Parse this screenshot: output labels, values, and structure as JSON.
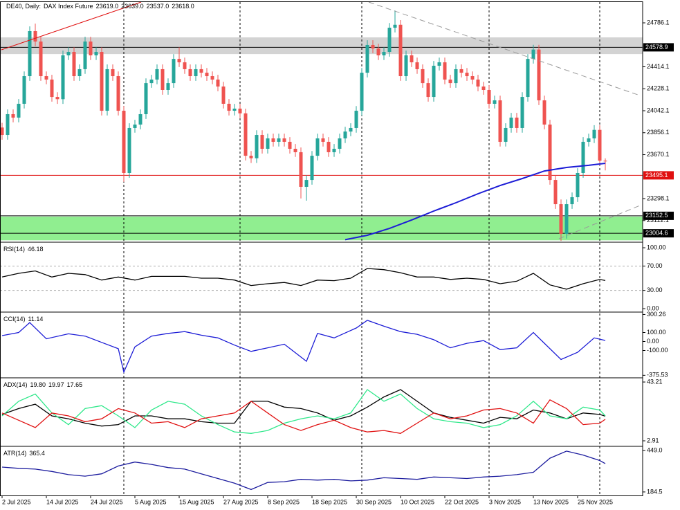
{
  "chart_data": [
    {
      "type": "candlestick",
      "title": "DE40, Daily:",
      "subtitle": "DAX Index Future",
      "header_values": [
        "23619.0",
        "23639.0",
        "23537.0",
        "23618.0"
      ],
      "xlim": [
        -0.375,
        115.75
      ],
      "ylim": [
        22935,
        24962
      ],
      "yticks": [
        24786.1,
        24414.1,
        24228.1,
        24042.1,
        23856.1,
        23670.1,
        23298.1,
        23112.1
      ],
      "up_color": "#26a69a",
      "down_color": "#ef5350",
      "open": [
        23900,
        23837,
        24013,
        23984,
        24101,
        24335,
        24716,
        24628,
        24335,
        24306,
        24159,
        24140,
        24511,
        24540,
        24335,
        24394,
        24628,
        24511,
        24540,
        24042,
        24394,
        24335,
        24042,
        23515,
        23896,
        23925,
        24013,
        24276,
        24306,
        24394,
        24218,
        24276,
        24481,
        24452,
        24394,
        24335,
        24394,
        24364,
        24335,
        24306,
        24247,
        24101,
        24042,
        24060,
        24020,
        23661,
        23640,
        23837,
        23720,
        23808,
        23779,
        23808,
        23779,
        23720,
        23691,
        23398,
        23456,
        23661,
        23808,
        23779,
        23691,
        23720,
        23808,
        23866,
        23896,
        24042,
        24364,
        24599,
        24569,
        24511,
        24540,
        24745,
        24770,
        24335,
        24511,
        24452,
        24394,
        24276,
        24159,
        24423,
        24452,
        24306,
        24276,
        24394,
        24364,
        24335,
        24306,
        24247,
        24218,
        24101,
        24130,
        23779,
        23896,
        23984,
        23896,
        24159,
        24481,
        24560,
        24130,
        23925,
        23456,
        23251,
        23000,
        23251,
        23310,
        23515,
        23779,
        23808,
        23880,
        23619
      ],
      "high": [
        23940,
        24053,
        24053,
        24141,
        24375,
        24756,
        24780,
        24668,
        24375,
        24346,
        24199,
        24551,
        24580,
        24580,
        24434,
        24668,
        24668,
        24580,
        24580,
        24434,
        24434,
        24375,
        24082,
        23936,
        23965,
        24053,
        24316,
        24346,
        24434,
        24434,
        24316,
        24521,
        24580,
        24492,
        24434,
        24434,
        24434,
        24404,
        24375,
        24346,
        24287,
        24141,
        24100,
        24100,
        24060,
        23701,
        23877,
        23877,
        23848,
        23848,
        23848,
        23848,
        23819,
        23760,
        23731,
        23496,
        23701,
        23848,
        23848,
        23819,
        23760,
        23848,
        23906,
        23936,
        24082,
        24404,
        24639,
        24639,
        24609,
        24580,
        24785,
        24890,
        24810,
        24551,
        24551,
        24492,
        24434,
        24316,
        24463,
        24492,
        24492,
        24346,
        24434,
        24434,
        24404,
        24375,
        24346,
        24287,
        24258,
        24170,
        24170,
        23936,
        24024,
        24024,
        24199,
        24521,
        24600,
        24600,
        24170,
        23965,
        23496,
        23291,
        23291,
        23350,
        23555,
        23819,
        23848,
        23920,
        23920,
        23639
      ],
      "low": [
        23797,
        23797,
        23944,
        23944,
        24061,
        24295,
        24588,
        24295,
        24266,
        24119,
        24100,
        24100,
        24471,
        24295,
        24295,
        24354,
        24471,
        24471,
        24002,
        24002,
        24295,
        24002,
        23440,
        23475,
        23856,
        23885,
        23973,
        24236,
        24266,
        24178,
        24178,
        24236,
        24412,
        24354,
        24295,
        24295,
        24324,
        24295,
        24266,
        24207,
        24061,
        24002,
        24002,
        23980,
        23621,
        23600,
        23600,
        23680,
        23680,
        23739,
        23739,
        23739,
        23680,
        23651,
        23300,
        23281,
        23416,
        23621,
        23739,
        23651,
        23651,
        23680,
        23768,
        23826,
        23856,
        24002,
        24324,
        24529,
        24471,
        24471,
        24500,
        24705,
        24295,
        24295,
        24412,
        24354,
        24236,
        24119,
        24119,
        24383,
        24266,
        24236,
        24236,
        24324,
        24295,
        24266,
        24207,
        24178,
        24061,
        24061,
        23739,
        23739,
        23856,
        23856,
        23856,
        24119,
        24441,
        24090,
        23885,
        23416,
        23211,
        22940,
        22960,
        23211,
        23270,
        23475,
        23739,
        23768,
        23579,
        23537
      ],
      "close": [
        23837,
        24013,
        23984,
        24101,
        24335,
        24716,
        24628,
        24335,
        24306,
        24159,
        24140,
        24511,
        24540,
        24335,
        24394,
        24628,
        24511,
        24540,
        24042,
        24394,
        24335,
        24042,
        23515,
        23896,
        23925,
        24013,
        24276,
        24306,
        24394,
        24218,
        24276,
        24481,
        24452,
        24394,
        24335,
        24394,
        24364,
        24335,
        24306,
        24247,
        24101,
        24042,
        24060,
        24020,
        23661,
        23640,
        23837,
        23720,
        23808,
        23779,
        23808,
        23779,
        23720,
        23691,
        23398,
        23456,
        23661,
        23808,
        23779,
        23691,
        23720,
        23808,
        23866,
        23896,
        24042,
        24364,
        24599,
        24569,
        24511,
        24540,
        24745,
        24770,
        24335,
        24511,
        24452,
        24394,
        24276,
        24159,
        24423,
        24452,
        24306,
        24276,
        24394,
        24364,
        24335,
        24306,
        24247,
        24218,
        24101,
        24130,
        23779,
        23896,
        23984,
        23896,
        24159,
        24481,
        24560,
        24130,
        23925,
        23456,
        23251,
        23000,
        23251,
        23310,
        23515,
        23779,
        23808,
        23880,
        23619,
        23618
      ],
      "ma": {
        "color": "#1c1cd6",
        "x": [
          62,
          66,
          70,
          74,
          78,
          82,
          86,
          90,
          94,
          98,
          102,
          106,
          109
        ],
        "values": [
          22950,
          22988,
          23046,
          23117,
          23193,
          23263,
          23339,
          23409,
          23468,
          23532,
          23562,
          23580,
          23597
        ]
      },
      "zones": [
        {
          "range": [
            24522,
            24663
          ],
          "color": "#d3d3d3"
        },
        {
          "range": [
            22945,
            23146
          ],
          "color": "#90ee90"
        }
      ],
      "levels": [
        {
          "value": 24578.9,
          "color": "#000000"
        },
        {
          "value": 23495.1,
          "color": "#e01010"
        },
        {
          "value": 23152.5,
          "color": "#000000"
        },
        {
          "value": 23004.6,
          "color": "#000000"
        }
      ],
      "separators": [
        22,
        43,
        65,
        88,
        108
      ]
    },
    {
      "type": "line",
      "title": "RSI(14)",
      "ylim": [
        -4.5,
        108
      ],
      "yticks": [
        {
          "value": 100,
          "label": "100.00"
        },
        {
          "value": 70,
          "label": "70.00"
        },
        {
          "value": 30,
          "label": "30.00"
        },
        {
          "value": 0,
          "label": "0.00"
        }
      ],
      "levels": [
        70,
        30
      ],
      "x": [
        0,
        3,
        6,
        9,
        12,
        15,
        18,
        21,
        24,
        27,
        30,
        33,
        36,
        39,
        42,
        45,
        48,
        51,
        54,
        57,
        60,
        63,
        66,
        69,
        72,
        75,
        78,
        81,
        84,
        87,
        90,
        93,
        96,
        99,
        102,
        105,
        108,
        109
      ],
      "series": [
        {
          "name": "RSI",
          "color": "#000000",
          "values": [
            52,
            58,
            62,
            52,
            58,
            56,
            47,
            52,
            47,
            53,
            53,
            53,
            50,
            50,
            47,
            38,
            41,
            43,
            38,
            47,
            46,
            50,
            66,
            64,
            59,
            52,
            52,
            48,
            50,
            48,
            41,
            45,
            58,
            39,
            32,
            41,
            48,
            46.18
          ]
        }
      ]
    },
    {
      "type": "line",
      "title": "CCI(14)",
      "ylim": [
        -396,
        319
      ],
      "yticks": [
        300.26,
        {
          "value": 100,
          "label": "100.00"
        },
        {
          "value": 0,
          "label": "0.00"
        },
        {
          "value": -100,
          "label": "-100.00"
        },
        -375.53
      ],
      "x": [
        0,
        3,
        5,
        8,
        12,
        15,
        18,
        21,
        22,
        24,
        27,
        30,
        33,
        36,
        39,
        42,
        45,
        48,
        51,
        55,
        57,
        60,
        64,
        66,
        69,
        72,
        75,
        78,
        81,
        84,
        87,
        90,
        93,
        96,
        98,
        101,
        104,
        107,
        109
      ],
      "series": [
        {
          "name": "CCI",
          "color": "#1c1cd6",
          "values": [
            65,
            100,
            210,
            30,
            85,
            60,
            -10,
            -80,
            -340,
            -60,
            60,
            90,
            110,
            70,
            40,
            -40,
            -110,
            -70,
            -30,
            -220,
            90,
            40,
            150,
            235,
            170,
            110,
            80,
            20,
            -70,
            -20,
            10,
            -90,
            -70,
            100,
            -20,
            -200,
            -120,
            40,
            11.14
          ]
        }
      ]
    },
    {
      "type": "line",
      "title": "ADX(14)",
      "header_values": [
        "19.80",
        "19.97",
        "17.65"
      ],
      "ylim": [
        -0.4,
        45.6
      ],
      "yticks": [
        43.21,
        2.91
      ],
      "x": [
        0,
        3,
        6,
        9,
        12,
        15,
        18,
        21,
        24,
        27,
        30,
        33,
        36,
        39,
        42,
        45,
        48,
        51,
        54,
        57,
        60,
        63,
        66,
        69,
        72,
        75,
        78,
        81,
        84,
        87,
        90,
        93,
        96,
        99,
        102,
        105,
        108,
        109
      ],
      "series": [
        {
          "name": "ADX",
          "color": "#000000",
          "values": [
            21,
            25,
            28,
            20,
            18,
            15,
            13,
            14,
            20,
            20,
            18,
            18,
            16,
            15,
            15,
            30,
            30,
            26,
            25,
            22,
            17,
            20,
            26,
            33,
            38,
            30,
            22,
            19,
            17,
            15,
            19,
            18,
            24,
            22,
            18,
            22,
            21,
            19.8
          ]
        },
        {
          "name": "+DI",
          "color": "#2ee88a",
          "values": [
            20,
            30,
            35,
            22,
            14,
            25,
            27,
            20,
            12,
            24,
            30,
            28,
            20,
            14,
            9,
            8,
            10,
            15,
            18,
            20,
            18,
            22,
            38,
            30,
            35,
            25,
            18,
            16,
            15,
            12,
            14,
            20,
            30,
            20,
            18,
            26,
            24,
            19.97
          ]
        },
        {
          "name": "-DI",
          "color": "#e01010",
          "values": [
            22,
            17,
            12,
            22,
            20,
            16,
            18,
            25,
            22,
            15,
            16,
            12,
            18,
            20,
            22,
            30,
            22,
            14,
            10,
            14,
            17,
            12,
            9,
            10,
            8,
            15,
            22,
            18,
            20,
            24,
            25,
            22,
            15,
            31,
            25,
            14,
            15,
            17.65
          ]
        }
      ]
    },
    {
      "type": "line",
      "title": "ATR(14)",
      "ylim": [
        162,
        471
      ],
      "yticks": [
        {
          "value": 449,
          "label": "449.0"
        },
        184.5
      ],
      "x": [
        0,
        3,
        6,
        9,
        12,
        15,
        18,
        21,
        24,
        27,
        30,
        33,
        36,
        39,
        42,
        45,
        48,
        51,
        54,
        57,
        60,
        63,
        66,
        69,
        72,
        75,
        78,
        81,
        84,
        87,
        90,
        93,
        96,
        99,
        102,
        105,
        108,
        109
      ],
      "series": [
        {
          "name": "ATR",
          "color": "#1c1c9e",
          "values": [
            343,
            335,
            330,
            315,
            295,
            285,
            300,
            350,
            375,
            360,
            340,
            330,
            300,
            270,
            240,
            200,
            245,
            250,
            265,
            260,
            265,
            255,
            260,
            275,
            270,
            265,
            280,
            275,
            270,
            280,
            285,
            295,
            310,
            400,
            445,
            420,
            385,
            365.4
          ]
        }
      ],
      "xticks": [
        {
          "value": 0,
          "label": "2 Jul 2025"
        },
        {
          "value": 8,
          "label": "14 Jul 2025"
        },
        {
          "value": 16,
          "label": "24 Jul 2025"
        },
        {
          "value": 24,
          "label": "5 Aug 2025"
        },
        {
          "value": 32,
          "label": "15 Aug 2025"
        },
        {
          "value": 40,
          "label": "27 Aug 2025"
        },
        {
          "value": 48,
          "label": "8 Sep 2025"
        },
        {
          "value": 56,
          "label": "18 Sep 2025"
        },
        {
          "value": 64,
          "label": "30 Sep 2025"
        },
        {
          "value": 72,
          "label": "10 Oct 2025"
        },
        {
          "value": 80,
          "label": "22 Oct 2025"
        },
        {
          "value": 88,
          "label": "3 Nov 2025"
        },
        {
          "value": 96,
          "label": "13 Nov 2025"
        },
        {
          "value": 104,
          "label": "25 Nov 2025"
        }
      ]
    }
  ]
}
